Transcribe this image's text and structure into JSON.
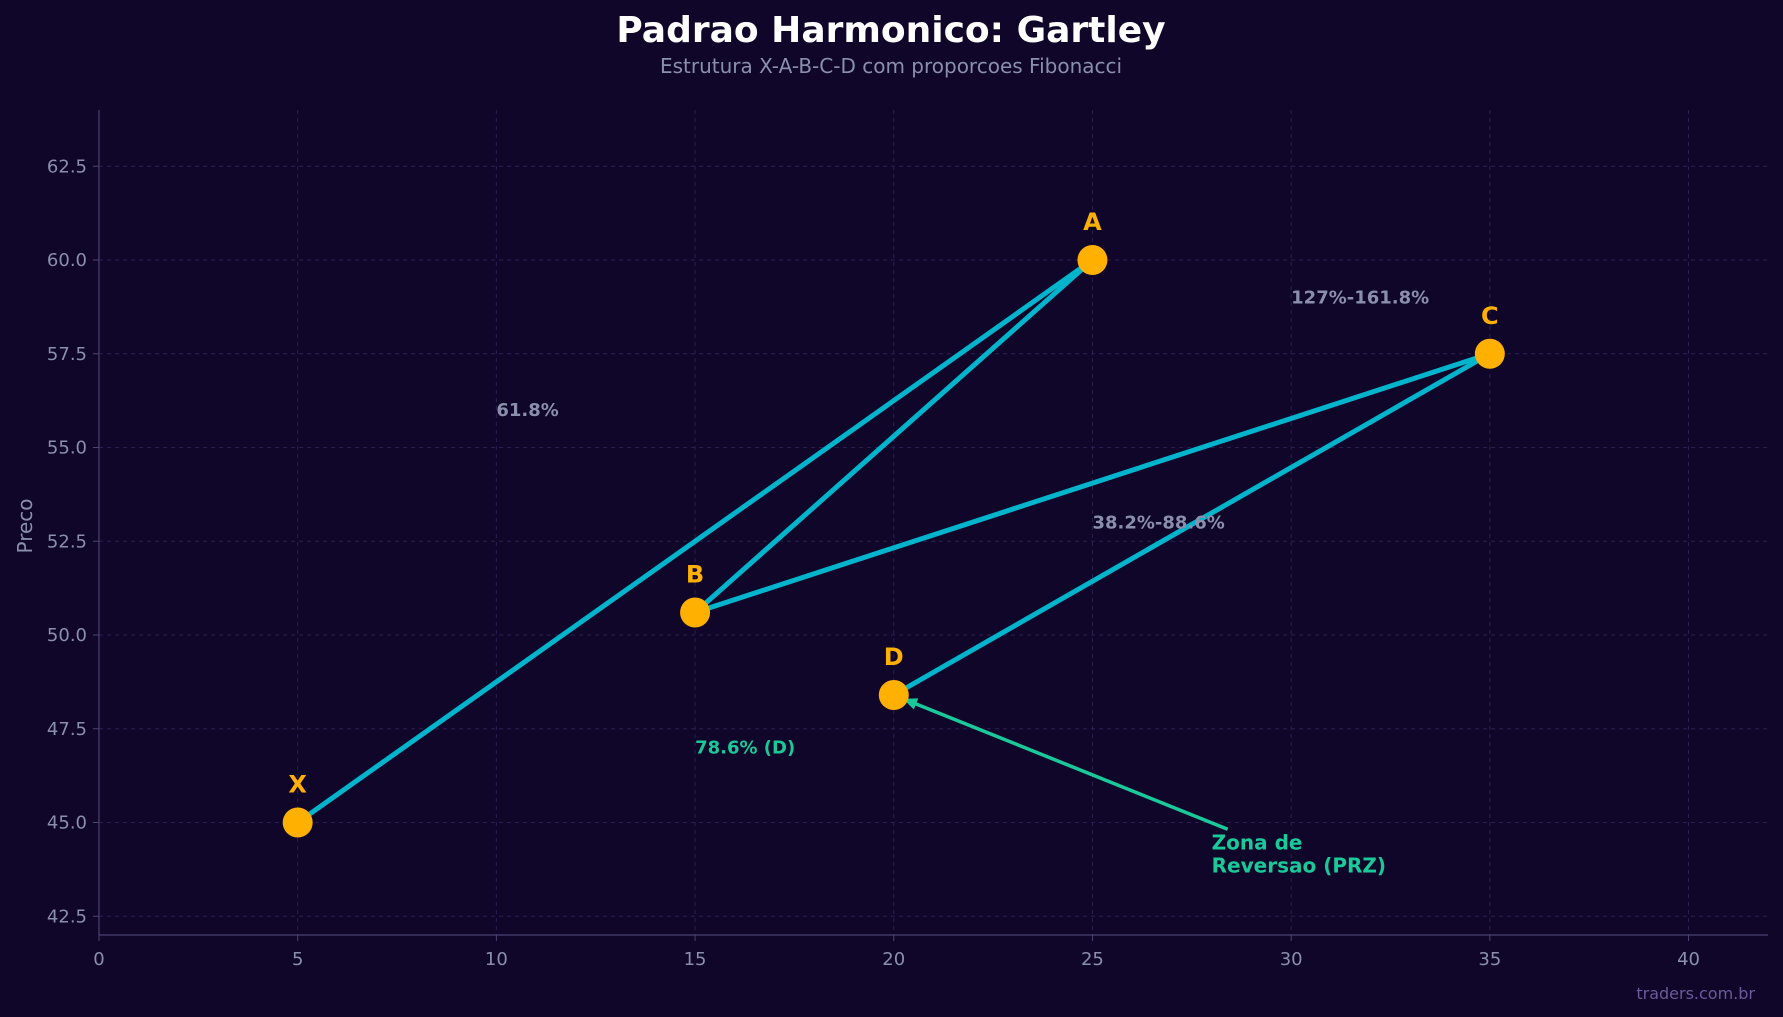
{
  "chart_data": {
    "type": "line",
    "title": "Padrao Harmonico: Gartley",
    "subtitle": "Estrutura X-A-B-C-D com proporcoes Fibonacci",
    "xlabel": "",
    "ylabel": "Preco",
    "xlim": [
      0,
      42
    ],
    "ylim": [
      42,
      64
    ],
    "xticks": [
      "0",
      "5",
      "10",
      "15",
      "20",
      "25",
      "30",
      "35",
      "40"
    ],
    "yticks": [
      "42.5",
      "45.0",
      "47.5",
      "50.0",
      "52.5",
      "55.0",
      "57.5",
      "60.0",
      "62.5"
    ],
    "grid": true,
    "points": [
      {
        "label": "X",
        "x": 5,
        "y": 45.0
      },
      {
        "label": "A",
        "x": 25,
        "y": 60.0
      },
      {
        "label": "B",
        "x": 15,
        "y": 50.6
      },
      {
        "label": "C",
        "x": 35,
        "y": 57.5
      },
      {
        "label": "D",
        "x": 20,
        "y": 48.4
      }
    ],
    "segments": [
      [
        "X",
        "A"
      ],
      [
        "A",
        "B"
      ],
      [
        "B",
        "C"
      ],
      [
        "C",
        "D"
      ]
    ],
    "ratio_labels": [
      {
        "text": "61.8%",
        "x": 10,
        "y": 56.0
      },
      {
        "text": "38.2%-88.6%",
        "x": 25,
        "y": 53.0
      },
      {
        "text": "127%-161.8%",
        "x": 30,
        "y": 59.0
      },
      {
        "text": "78.6% (D)",
        "x": 15,
        "y": 47.0
      }
    ],
    "annotation": {
      "text_lines": [
        "Zona de",
        "Reversao (PRZ)"
      ],
      "text_x": 28,
      "text_y": 44.5,
      "target_x": 20,
      "target_y": 48.4
    },
    "colors": {
      "line": "#00b4cc",
      "point": "#ffb000",
      "point_label": "#ffb000",
      "ratio_label": "#8a8fad",
      "ratio_label_highlight": "#1ac99a",
      "annotation": "#1ac99a"
    },
    "watermark": "traders.com.br"
  }
}
